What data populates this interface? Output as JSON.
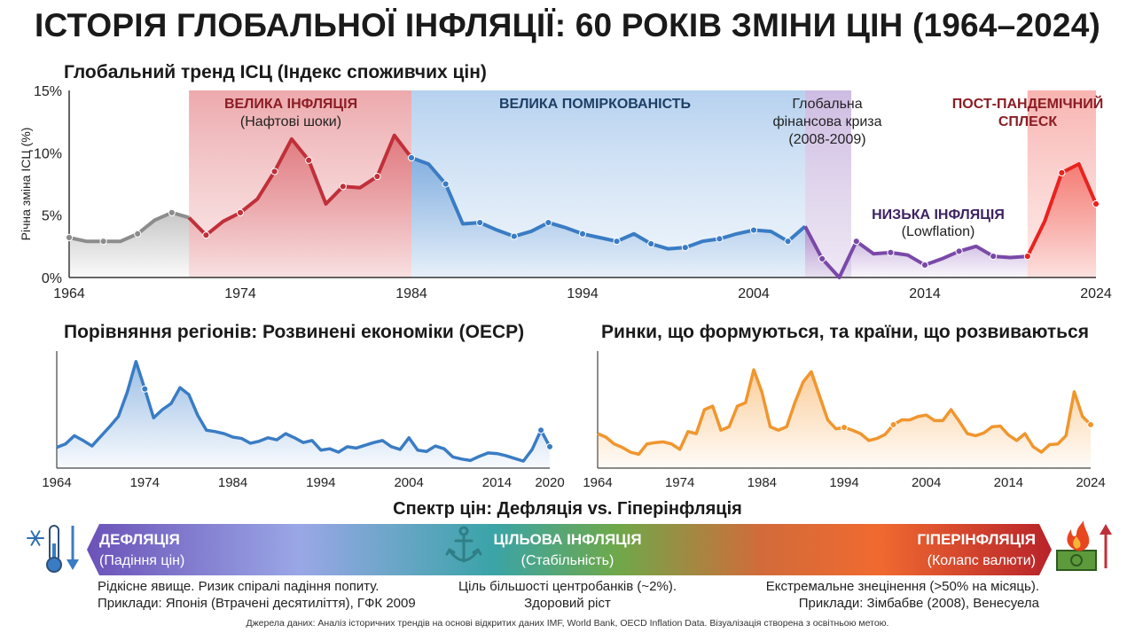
{
  "title": "ІСТОРІЯ ГЛОБАЛЬНОЇ ІНФЛЯЦІЇ: 60 РОКІВ ЗМІНИ ЦІН (1964–2024)",
  "subtitle": "Глобальний тренд ІСЦ (Індекс споживчих цін)",
  "colors": {
    "gray": "#8c8c8c",
    "red": "#c0303a",
    "blue": "#3a7cc4",
    "purple": "#7a49a8",
    "bright_red": "#e8231f",
    "orange": "#f0962e"
  },
  "chart_data": [
    {
      "type": "line",
      "title": "Глобальний тренд ІСЦ (Індекс споживчих цін)",
      "ylabel": "Річна зміна ІСЦ (%)",
      "xlabel": "",
      "xlim": [
        1964,
        2024
      ],
      "ylim": [
        0,
        15
      ],
      "x_ticks": [
        "1964",
        "1974",
        "1984",
        "1994",
        "2004",
        "2014",
        "2024"
      ],
      "y_ticks": [
        "0%",
        "5%",
        "10%",
        "15%"
      ],
      "grid": false,
      "x": [
        1964,
        1965,
        1966,
        1967,
        1968,
        1969,
        1970,
        1971,
        1972,
        1973,
        1974,
        1975,
        1976,
        1977,
        1978,
        1979,
        1980,
        1981,
        1982,
        1983,
        1984,
        1985,
        1986,
        1987,
        1988,
        1989,
        1990,
        1991,
        1992,
        1993,
        1994,
        1995,
        1996,
        1997,
        1998,
        1999,
        2000,
        2001,
        2002,
        2003,
        2004,
        2005,
        2006,
        2007,
        2008,
        2009,
        2010,
        2011,
        2012,
        2013,
        2014,
        2015,
        2016,
        2017,
        2018,
        2019,
        2020,
        2021,
        2022,
        2023,
        2024
      ],
      "y": [
        3.2,
        2.9,
        2.9,
        2.9,
        3.5,
        4.6,
        5.2,
        4.8,
        3.4,
        4.5,
        5.2,
        6.3,
        8.5,
        11.1,
        9.4,
        5.9,
        7.3,
        7.2,
        8.1,
        11.4,
        9.6,
        9.1,
        7.5,
        4.3,
        4.4,
        3.8,
        3.3,
        3.7,
        4.4,
        4.0,
        3.5,
        3.2,
        2.9,
        3.5,
        2.7,
        2.3,
        2.4,
        2.9,
        3.1,
        3.5,
        3.8,
        3.7,
        2.9,
        4.1,
        1.5,
        0.0,
        2.9,
        1.9,
        2.0,
        1.8,
        1.0,
        1.5,
        2.1,
        2.5,
        1.7,
        1.6,
        1.7,
        4.5,
        8.4,
        9.1,
        5.9
      ],
      "era_labels": [
        {
          "title": "ВЕЛИКА ІНФЛЯЦІЯ",
          "sub": "(Нафтові шоки)"
        },
        {
          "title": "ВЕЛИКА ПОМІРКОВАНІСТЬ",
          "sub": ""
        },
        {
          "title": "",
          "lines": [
            "Глобальна",
            "фінансова криза",
            "(2008-2009)"
          ]
        },
        {
          "title": "НИЗЬКА ІНФЛЯЦІЯ",
          "sub": "(Lowflation)"
        },
        {
          "title_lines": [
            "ПОСТ-ПАНДЕМІЧНИЙ",
            "СПЛЕСК"
          ]
        }
      ],
      "eras": [
        {
          "from": 1964,
          "to": 1971,
          "color": "#8c8c8c"
        },
        {
          "from": 1971,
          "to": 1984,
          "color": "#c0303a"
        },
        {
          "from": 1984,
          "to": 2007,
          "color": "#3a7cc4"
        },
        {
          "from": 2007,
          "to": 2020,
          "color": "#7a49a8"
        },
        {
          "from": 2020,
          "to": 2024,
          "color": "#e8231f"
        }
      ]
    },
    {
      "type": "area",
      "title": "Порівняння регіонів: Розвинені економіки (OECP)",
      "x_ticks": [
        "1964",
        "1974",
        "1984",
        "1994",
        "2004",
        "2014",
        "2020"
      ],
      "xlim": [
        1964,
        2020
      ],
      "ylim": [
        0,
        16
      ],
      "x": [
        1964,
        1965,
        1966,
        1967,
        1968,
        1969,
        1970,
        1971,
        1972,
        1973,
        1974,
        1975,
        1976,
        1977,
        1978,
        1979,
        1980,
        1981,
        1982,
        1983,
        1984,
        1985,
        1986,
        1987,
        1988,
        1989,
        1990,
        1991,
        1992,
        1993,
        1994,
        1995,
        1996,
        1997,
        1998,
        1999,
        2000,
        2001,
        2002,
        2003,
        2004,
        2005,
        2006,
        2007,
        2008,
        2009,
        2010,
        2011,
        2012,
        2013,
        2014,
        2015,
        2016,
        2017,
        2018,
        2019,
        2020
      ],
      "y": [
        2.5,
        3.0,
        4.2,
        3.5,
        2.7,
        4.1,
        5.5,
        7.0,
        10.5,
        15.0,
        11.0,
        6.8,
        8.0,
        8.9,
        11.2,
        10.2,
        7.2,
        5.0,
        4.8,
        4.5,
        4.0,
        3.8,
        3.1,
        3.4,
        3.9,
        3.6,
        4.5,
        3.9,
        3.2,
        3.5,
        2.1,
        2.3,
        1.8,
        2.6,
        2.4,
        2.8,
        3.2,
        3.5,
        2.6,
        2.2,
        3.9,
        2.1,
        1.9,
        2.7,
        2.3,
        1.1,
        0.8,
        0.6,
        1.2,
        1.7,
        1.6,
        1.3,
        0.9,
        0.5,
        2.2,
        5.0,
        2.6
      ]
    },
    {
      "type": "area",
      "title": "Ринки, що формуються, та країни, що розвиваються",
      "x_ticks": [
        "1964",
        "1974",
        "1984",
        "1994",
        "2004",
        "2014",
        "2024"
      ],
      "xlim": [
        1964,
        2024
      ],
      "ylim": [
        0,
        16
      ],
      "x": [
        1964,
        1965,
        1966,
        1967,
        1968,
        1969,
        1970,
        1971,
        1972,
        1973,
        1974,
        1975,
        1976,
        1977,
        1978,
        1979,
        1980,
        1981,
        1982,
        1983,
        1984,
        1985,
        1986,
        1987,
        1988,
        1989,
        1990,
        1991,
        1992,
        1993,
        1994,
        1995,
        1996,
        1997,
        1998,
        1999,
        2000,
        2001,
        2002,
        2003,
        2004,
        2005,
        2006,
        2007,
        2008,
        2009,
        2010,
        2011,
        2012,
        2013,
        2014,
        2015,
        2016,
        2017,
        2018,
        2019,
        2020,
        2021,
        2022,
        2023,
        2024
      ],
      "y": [
        4.5,
        4.0,
        3.0,
        2.5,
        1.8,
        1.5,
        3.0,
        3.2,
        3.3,
        3.0,
        2.2,
        4.8,
        4.5,
        8.0,
        8.5,
        5.0,
        5.5,
        8.5,
        9.0,
        13.8,
        10.5,
        5.5,
        5.0,
        5.5,
        9.0,
        12.0,
        13.5,
        10.0,
        6.5,
        5.2,
        5.4,
        5.0,
        4.5,
        3.5,
        3.8,
        4.4,
        5.8,
        6.5,
        6.5,
        7.0,
        7.2,
        6.4,
        6.4,
        8.0,
        6.3,
        4.5,
        4.2,
        4.6,
        5.5,
        5.6,
        4.3,
        3.5,
        4.5,
        2.6,
        1.8,
        2.9,
        3.0,
        4.2,
        10.6,
        7.0,
        5.8
      ]
    }
  ],
  "oecd_title": "Порівняння регіонів: Розвинені економіки (OECP)",
  "em_title": "Ринки, що формуються, та країни, що розвиваються",
  "spectrum": {
    "title": "Спектр цін: Дефляція vs. Гіперінфляція",
    "deflation_title": "ДЕФЛЯЦІЯ",
    "deflation_sub": "(Падіння цін)",
    "target_title": "ЦІЛЬОВА ІНФЛЯЦІЯ",
    "target_sub": "(Стабільність)",
    "hyper_title": "ГІПЕРІНФЛЯЦІЯ",
    "hyper_sub": "(Колапс валюти)",
    "deflation_desc1": "Рідкісне явище. Ризик спіралі падіння попиту.",
    "deflation_desc2": "Приклади: Японія (Втрачені десятиліття), ГФК 2009",
    "target_desc1": "Ціль більшості центробанків (~2%).",
    "target_desc2": "Здоровий ріст",
    "hyper_desc1": "Екстремальне знецінення (>50% на місяць).",
    "hyper_desc2": "Приклади: Зімбабве (2008), Венесуела",
    "icons": [
      "snowflake-icon",
      "thermometer-icon",
      "down-arrow-icon",
      "anchor-icon",
      "fire-icon",
      "money-icon",
      "up-arrow-icon"
    ]
  },
  "source": "Джерела даних: Аналіз історичних трендів на основі відкритих даних IMF, World Bank, OECD Inflation Data. Візуалізація створена з освітньою метою."
}
